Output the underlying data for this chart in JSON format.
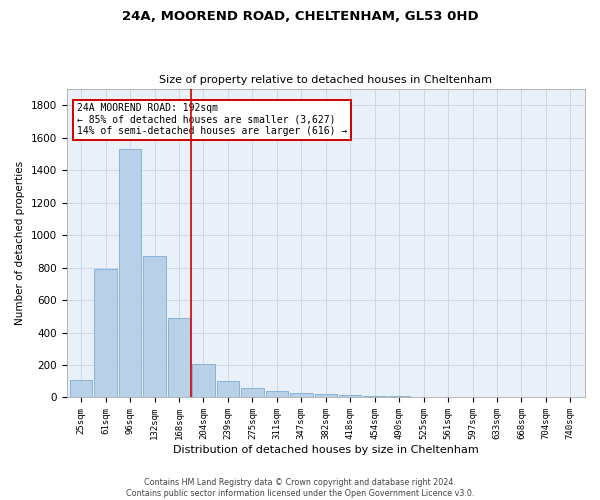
{
  "title1": "24A, MOOREND ROAD, CHELTENHAM, GL53 0HD",
  "title2": "Size of property relative to detached houses in Cheltenham",
  "xlabel": "Distribution of detached houses by size in Cheltenham",
  "ylabel": "Number of detached properties",
  "footer1": "Contains HM Land Registry data © Crown copyright and database right 2024.",
  "footer2": "Contains public sector information licensed under the Open Government Licence v3.0.",
  "annotation_line1": "24A MOOREND ROAD: 192sqm",
  "annotation_line2": "← 85% of detached houses are smaller (3,627)",
  "annotation_line3": "14% of semi-detached houses are larger (616) →",
  "bar_color": "#b8d0e8",
  "bar_edge_color": "#7aadd4",
  "vline_color": "#cc0000",
  "annotation_box_edgecolor": "#cc0000",
  "grid_color": "#c8d8ea",
  "bg_color": "#eaf0f8",
  "categories": [
    "25sqm",
    "61sqm",
    "96sqm",
    "132sqm",
    "168sqm",
    "204sqm",
    "239sqm",
    "275sqm",
    "311sqm",
    "347sqm",
    "382sqm",
    "418sqm",
    "454sqm",
    "490sqm",
    "525sqm",
    "561sqm",
    "597sqm",
    "633sqm",
    "668sqm",
    "704sqm",
    "740sqm"
  ],
  "values": [
    110,
    790,
    1530,
    870,
    490,
    205,
    100,
    60,
    38,
    28,
    22,
    18,
    8,
    6,
    5,
    4,
    4,
    3,
    3,
    3,
    5
  ],
  "vline_x": 4.5,
  "ylim": [
    0,
    1900
  ],
  "yticks": [
    0,
    200,
    400,
    600,
    800,
    1000,
    1200,
    1400,
    1600,
    1800
  ]
}
